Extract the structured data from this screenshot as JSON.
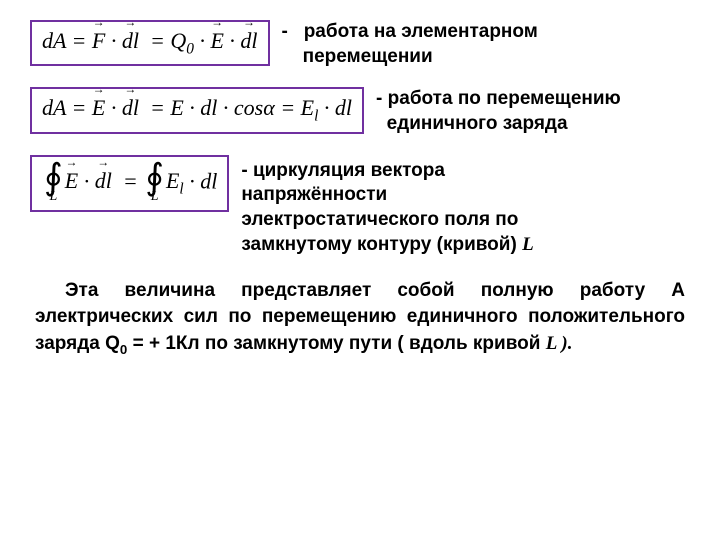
{
  "colors": {
    "border": "#7030a0",
    "text": "#000000",
    "background": "#ffffff"
  },
  "typography": {
    "formula_font": "Times New Roman",
    "body_font": "Arial",
    "formula_fontsize": 22,
    "description_fontsize": 19,
    "paragraph_fontsize": 19
  },
  "formula1": {
    "html": "<i>dA</i> = <span class=\"vec\"><i>F</i></span> · <span class=\"vec\"><i>dl</i></span>&nbsp; = <i>Q</i><sub>0</sub> · <span class=\"vec\"><i>E</i></span> · <span class=\"vec\"><i>dl</i></span>"
  },
  "desc1": {
    "prefix": "-",
    "line1": "работа  на   элементарном",
    "line2": "перемещении"
  },
  "formula2": {
    "html": "<i>dA</i> = <span class=\"vec\"><i>E</i></span> · <span class=\"vec\"><i>dl</i></span>&nbsp; = <i>E</i> · <i>dl</i> · cos<i>α</i> = <i>E<sub>l</sub></i> · <i>dl</i>"
  },
  "desc2": {
    "prefix": "-",
    "line1": "работа по перемещению",
    "line2": "единичного заряда"
  },
  "formula3": {
    "html": "<span class=\"integral\"><span class=\"int-sym\">∮</span><span class=\"int-sub\">L</span></span><span class=\"vec\"><i>E</i></span> · <span class=\"vec\"><i>dl</i></span>&nbsp; = <span class=\"integral\"><span class=\"int-sym\">∮</span><span class=\"int-sub\">L</span></span><i>E<sub>l</sub></i> · <i>dl</i>"
  },
  "desc3": {
    "prefix": "-",
    "line1": "циркуляция  вектора",
    "line2": "напряжённости",
    "line3": "электростатического поля  по",
    "line4_a": "замкнутому контуру  (кривой)  ",
    "line4_b": "L"
  },
  "paragraph": {
    "p1": "Эта величина представляет собой полную работу  А",
    "p2": "электрических сил    по перемещению единичного",
    "p3_a": "положительного заряда    Q",
    "p3_sub": "0",
    "p3_b": " = + 1Кл   по замкнутому",
    "p4_a": "пути  ( вдоль  кривой  ",
    "p4_b": "L ).",
    "full_inline": "Эта величина представляет собой полную работу А электрических сил по перемещению единичного положительного заряда Q<sub>0</sub> = + 1Кл по замкнутому пути ( вдоль кривой <span class=\"italic\">L</span> )."
  }
}
